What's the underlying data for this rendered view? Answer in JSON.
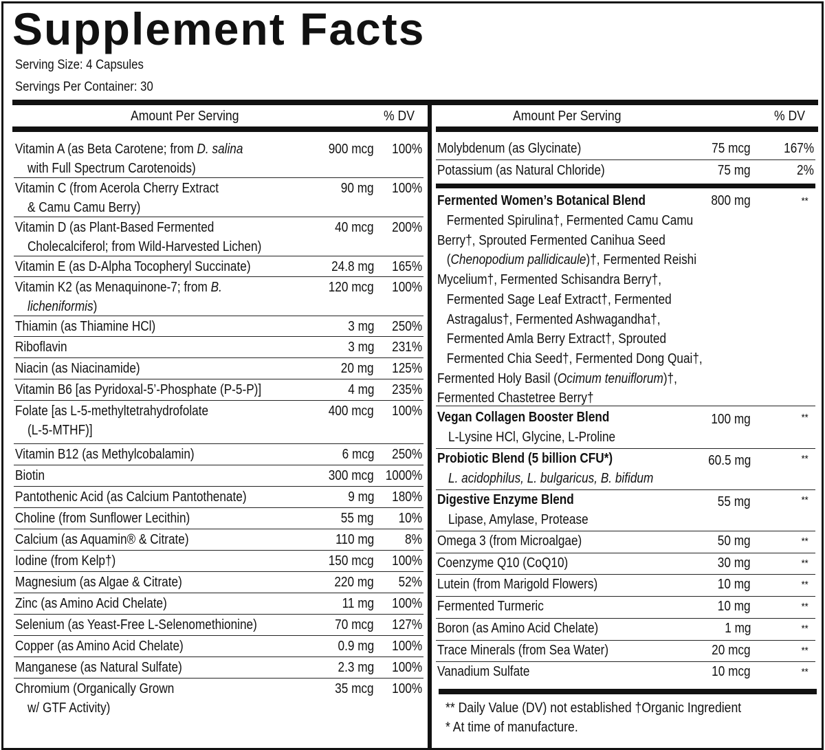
{
  "title": "Supplement Facts",
  "serving_size": "Serving Size: 4 Capsules",
  "servings_per_container": "Servings Per Container: 30",
  "columns": {
    "amount_header": "Amount Per Serving",
    "dv_header": "% DV"
  },
  "left_rows": [
    {
      "name": "Vitamin A (as Beta Carotene; from ",
      "name_italic": "D. salina",
      "sub": "with Full Spectrum Carotenoids)",
      "amount": "900 mcg",
      "dv": "100%"
    },
    {
      "name": "Vitamin C (from Acerola Cherry Extract",
      "sub": "& Camu Camu Berry)",
      "amount": "90 mg",
      "dv": "100%"
    },
    {
      "name": "Vitamin D (as Plant-Based Fermented",
      "sub": "Cholecalciferol; from Wild-Harvested Lichen)",
      "amount": "40 mcg",
      "dv": "200%"
    },
    {
      "name": "Vitamin E (as D-Alpha Tocopheryl Succinate)",
      "amount": "24.8 mg",
      "dv": "165%"
    },
    {
      "name": "Vitamin K2 (as Menaquinone-7; from ",
      "name_italic": "B.",
      "sub_italic": "licheniformis",
      "sub": ")",
      "amount": "120 mcg",
      "dv": "100%"
    },
    {
      "name": "Thiamin (as Thiamine HCl)",
      "amount": "3 mg",
      "dv": "250%"
    },
    {
      "name": "Riboflavin",
      "amount": "3 mg",
      "dv": "231%"
    },
    {
      "name": "Niacin (as Niacinamide)",
      "amount": "20 mg",
      "dv": "125%"
    },
    {
      "name": "Vitamin B6 [as Pyridoxal-5’-Phosphate (P-5-P)]",
      "amount": "4 mg",
      "dv": "235%"
    },
    {
      "name": "Folate [as  L-5-methyltetrahydrofolate",
      "sub": "(L-5-MTHF)]",
      "amount": "400 mcg",
      "dv": "100%"
    },
    {
      "name": "Vitamin B12 (as Methylcobalamin)",
      "amount": "6 mcg",
      "dv": "250%"
    },
    {
      "name": "Biotin",
      "amount": "300 mcg",
      "dv": "1000%"
    },
    {
      "name": "Pantothenic Acid (as Calcium Pantothenate)",
      "amount": "9 mg",
      "dv": "180%"
    },
    {
      "name": "Choline (from Sunflower Lecithin)",
      "amount": "55 mg",
      "dv": "10%"
    },
    {
      "name": "Calcium (as Aquamin® & Citrate)",
      "amount": "110 mg",
      "dv": "8%"
    },
    {
      "name": "Iodine (from Kelp†)",
      "amount": "150 mcg",
      "dv": "100%"
    },
    {
      "name": "Magnesium (as Algae & Citrate)",
      "amount": "220 mg",
      "dv": "52%"
    },
    {
      "name": "Zinc (as Amino Acid Chelate)",
      "amount": "11 mg",
      "dv": "100%"
    },
    {
      "name": "Selenium (as Yeast-Free L-Selenomethionine)",
      "amount": "70 mcg",
      "dv": "127%"
    },
    {
      "name": "Copper (as Amino Acid Chelate)",
      "amount": "0.9 mg",
      "dv": "100%"
    },
    {
      "name": "Manganese (as Natural Sulfate)",
      "amount": "2.3 mg",
      "dv": "100%"
    },
    {
      "name": "Chromium (Organically Grown",
      "sub": "w/ GTF Activity)",
      "amount": "35 mcg",
      "dv": "100%"
    }
  ],
  "right_rows_top": [
    {
      "name": "Molybdenum (as Glycinate)",
      "amount": "75 mcg",
      "dv": "167%"
    },
    {
      "name": "Potassium (as Natural Chloride)",
      "amount": "75 mg",
      "dv": "2%"
    }
  ],
  "botanical_blend": {
    "name": "Fermented Women’s Botanical Blend",
    "amount": "800 mg",
    "dv": "**",
    "lines": [
      "Fermented Spirulina†, Fermented Camu Camu",
      "Berry†, Sprouted Fermented Canihua Seed",
      "(|Chenopodium pallidicaule|)†, Fermented Reishi",
      "Mycelium†, Fermented Schisandra Berry†,",
      "Fermented Sage Leaf Extract†, Fermented",
      "Astragalus†, Fermented Ashwagandha†,",
      "Fermented Amla Berry Extract†, Sprouted",
      "Fermented Chia Seed†, Fermented Dong Quai†,",
      "Fermented Holy Basil (|Ocimum tenuiflorum|)†,",
      "Fermented Chastetree Berry†"
    ]
  },
  "blends": [
    {
      "name": "Vegan Collagen Booster Blend",
      "amount": "100 mg",
      "dv": "**",
      "sub": "L-Lysine HCl, Glycine, L-Proline",
      "sub_italic": false
    },
    {
      "name": "Probiotic Blend (5 billion CFU*)",
      "amount": "60.5 mg",
      "dv": "**",
      "sub": "L. acidophilus, L. bulgaricus, B. bifidum",
      "sub_italic": true
    },
    {
      "name": "Digestive Enzyme Blend",
      "amount": "55 mg",
      "dv": "**",
      "sub": "Lipase, Amylase, Protease",
      "sub_italic": false
    }
  ],
  "right_rows_bottom": [
    {
      "name": "Omega 3 (from Microalgae)",
      "amount": "50 mg",
      "dv": "**"
    },
    {
      "name": "Coenzyme Q10 (CoQ10)",
      "amount": "30 mg",
      "dv": "**"
    },
    {
      "name": "Lutein (from Marigold Flowers)",
      "amount": "10 mg",
      "dv": "**"
    },
    {
      "name": "Fermented Turmeric",
      "amount": "10 mg",
      "dv": "**"
    },
    {
      "name": "Boron (as Amino Acid Chelate)",
      "amount": "1 mg",
      "dv": "**"
    },
    {
      "name": "Trace Minerals (from Sea Water)",
      "amount": "20 mcg",
      "dv": "**"
    },
    {
      "name": "Vanadium Sulfate",
      "amount": "10 mcg",
      "dv": "**"
    }
  ],
  "footnotes": {
    "line1": "** Daily Value (DV) not established †Organic Ingredient",
    "line2": "* At time of manufacture."
  }
}
